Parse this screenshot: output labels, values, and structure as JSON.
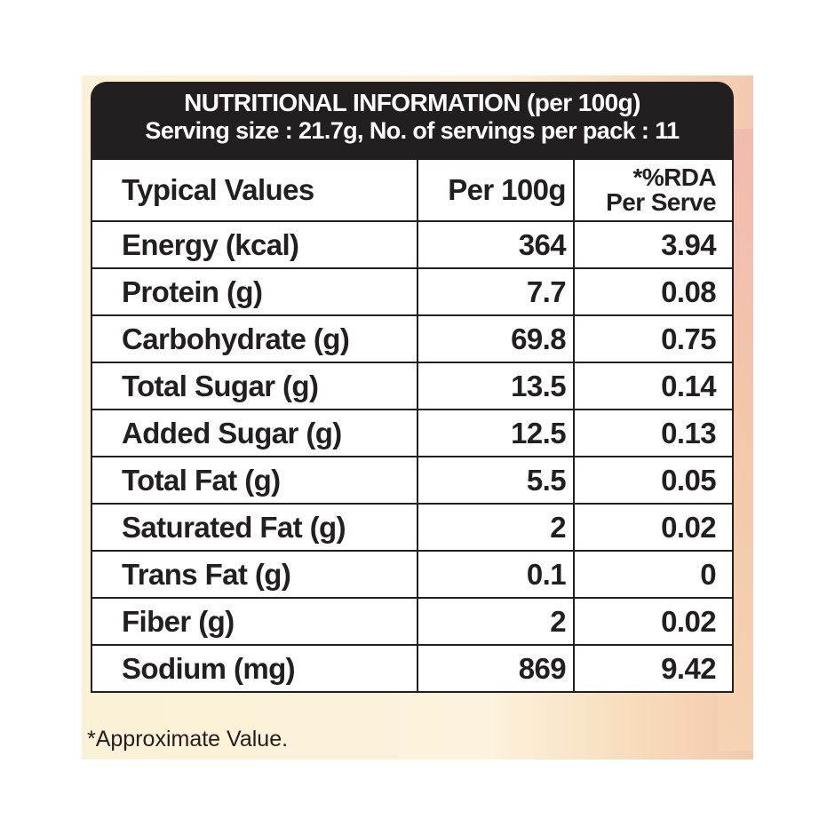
{
  "header": {
    "title": "NUTRITIONAL INFORMATION (per 100g)",
    "subtitle": "Serving size : 21.7g, No. of servings per pack : 11"
  },
  "table": {
    "columns": [
      "Typical Values",
      "Per 100g",
      "*%RDA",
      "Per Serve"
    ],
    "rows": [
      {
        "label": "Energy (kcal)",
        "per100g": "364",
        "rda": "3.94"
      },
      {
        "label": "Protein (g)",
        "per100g": "7.7",
        "rda": "0.08"
      },
      {
        "label": "Carbohydrate (g)",
        "per100g": "69.8",
        "rda": "0.75"
      },
      {
        "label": "Total Sugar (g)",
        "per100g": "13.5",
        "rda": "0.14"
      },
      {
        "label": "Added Sugar (g)",
        "per100g": "12.5",
        "rda": "0.13"
      },
      {
        "label": "Total Fat (g)",
        "per100g": "5.5",
        "rda": "0.05"
      },
      {
        "label": "Saturated Fat (g)",
        "per100g": "2",
        "rda": "0.02"
      },
      {
        "label": "Trans Fat (g)",
        "per100g": "0.1",
        "rda": "0"
      },
      {
        "label": "Fiber (g)",
        "per100g": "2",
        "rda": "0.02"
      },
      {
        "label": "Sodium (mg)",
        "per100g": "869",
        "rda": "9.42"
      }
    ]
  },
  "footnote": "*Approximate Value."
}
